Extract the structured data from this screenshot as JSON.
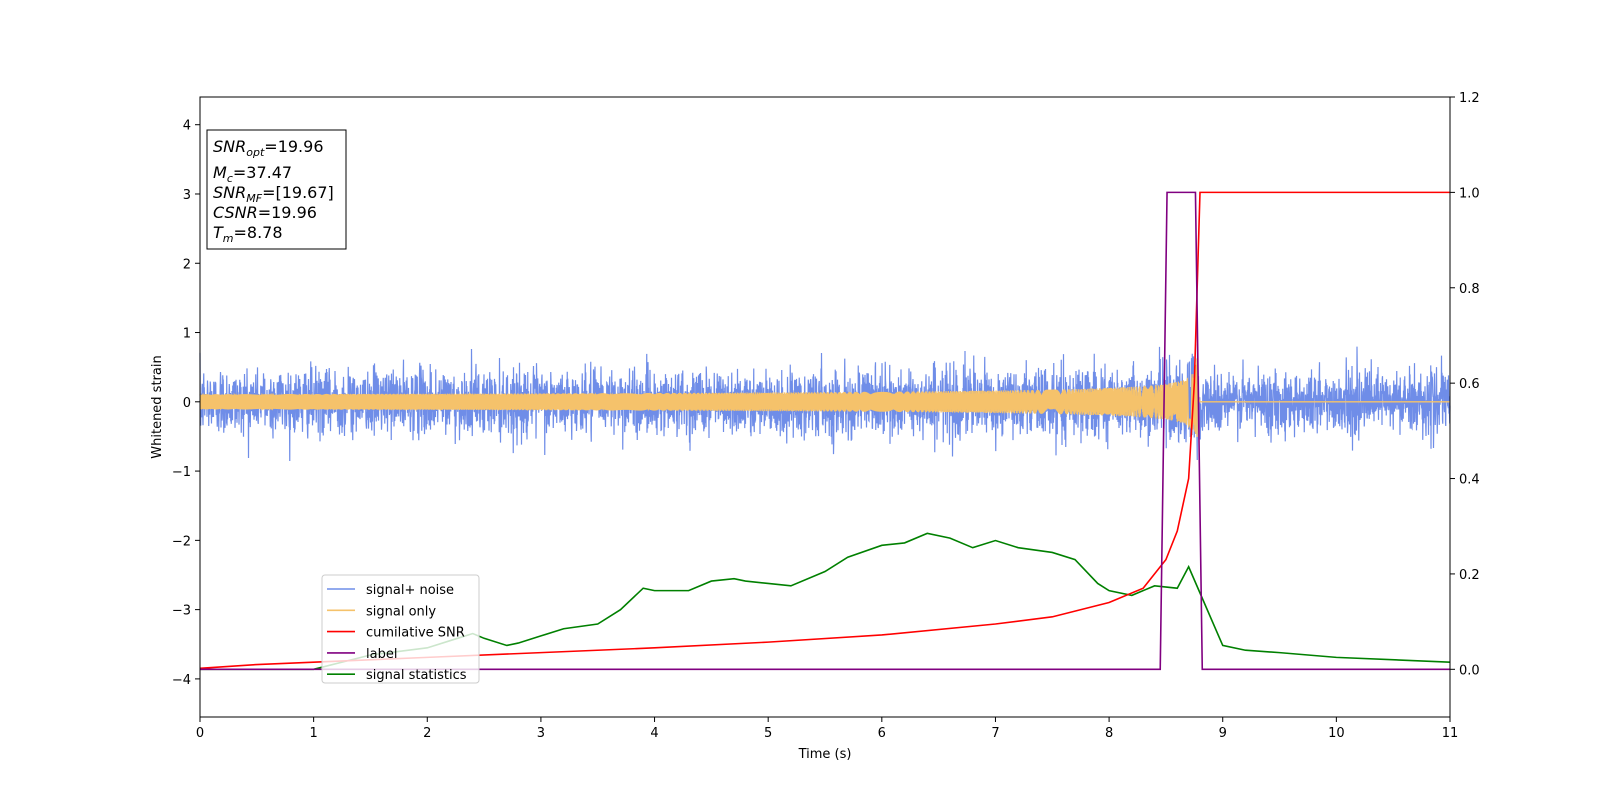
{
  "chart_data": {
    "type": "line",
    "xlabel": "Time (s)",
    "ylabel": "Whitened strain",
    "xlim": [
      0,
      11
    ],
    "ylim_left": [
      -4.55,
      4.4
    ],
    "ylim_right": [
      -0.1,
      1.2
    ],
    "x_ticks": [
      "0",
      "1",
      "2",
      "3",
      "4",
      "5",
      "6",
      "7",
      "8",
      "9",
      "10",
      "11"
    ],
    "y_left_ticks": [
      "4",
      "3",
      "2",
      "1",
      "0",
      "−1",
      "−2",
      "−3",
      "−4"
    ],
    "y_right_ticks": [
      "1.2",
      "1.0",
      "0.8",
      "0.6",
      "0.4",
      "0.2",
      "0.0"
    ],
    "x_tick_values": [
      0,
      1,
      2,
      3,
      4,
      5,
      6,
      7,
      8,
      9,
      10,
      11
    ],
    "y_left_tick_values": [
      4,
      3,
      2,
      1,
      0,
      -1,
      -2,
      -3,
      -4
    ],
    "y_right_tick_values": [
      1.2,
      1.0,
      0.8,
      0.6,
      0.4,
      0.2,
      0.0
    ],
    "series": [
      {
        "name": "signal+ noise",
        "axis": "left",
        "color": "#6f8de8",
        "description_values": "noise band amplitude ~ +/-0.5, peaks to ~0.85; merger peak ~1.0 at t=8.78",
        "noise_std": 0.22
      },
      {
        "name": "signal only",
        "axis": "left",
        "color": "#f5c26b",
        "chirp_merger_time": 8.78,
        "chirp_peak_amplitude": 0.75
      },
      {
        "name": "cumilative SNR",
        "axis": "right",
        "color": "#ff0000",
        "x": [
          0,
          0.5,
          1,
          2,
          3,
          4,
          5,
          6,
          7,
          7.5,
          8,
          8.3,
          8.5,
          8.6,
          8.7,
          8.75,
          8.8,
          9,
          10,
          11
        ],
        "y": [
          0.002,
          0.01,
          0.015,
          0.025,
          0.035,
          0.045,
          0.057,
          0.072,
          0.095,
          0.11,
          0.14,
          0.17,
          0.23,
          0.29,
          0.4,
          0.6,
          1.0,
          1.0,
          1.0,
          1.0
        ]
      },
      {
        "name": "label",
        "axis": "right",
        "color": "#800080",
        "x": [
          0,
          8.45,
          8.51,
          8.76,
          8.82,
          11
        ],
        "y": [
          0,
          0,
          1,
          1,
          0,
          0
        ]
      },
      {
        "name": "signal statistics",
        "axis": "right",
        "color": "#008000",
        "x": [
          0,
          1,
          1.5,
          2,
          2.2,
          2.4,
          2.5,
          2.7,
          2.8,
          3,
          3.2,
          3.5,
          3.7,
          3.9,
          4,
          4.3,
          4.5,
          4.7,
          4.8,
          5,
          5.2,
          5.5,
          5.7,
          6,
          6.2,
          6.4,
          6.6,
          6.8,
          7,
          7.2,
          7.5,
          7.7,
          7.9,
          8.0,
          8.2,
          8.4,
          8.6,
          8.7,
          8.8,
          9.0,
          9.2,
          9.5,
          10,
          11
        ],
        "y": [
          0.0,
          0.0,
          0.03,
          0.045,
          0.06,
          0.075,
          0.065,
          0.05,
          0.055,
          0.07,
          0.085,
          0.095,
          0.125,
          0.17,
          0.165,
          0.165,
          0.185,
          0.19,
          0.185,
          0.18,
          0.175,
          0.205,
          0.235,
          0.26,
          0.265,
          0.285,
          0.275,
          0.255,
          0.27,
          0.255,
          0.245,
          0.23,
          0.18,
          0.165,
          0.155,
          0.175,
          0.17,
          0.215,
          0.16,
          0.05,
          0.04,
          0.035,
          0.025,
          0.015
        ]
      }
    ],
    "legend_position": "lower left",
    "legend": [
      {
        "label": "signal+ noise",
        "color": "#6f8de8"
      },
      {
        "label": "signal only",
        "color": "#f5c26b"
      },
      {
        "label": "cumilative SNR",
        "color": "#ff0000"
      },
      {
        "label": "label",
        "color": "#800080"
      },
      {
        "label": "signal statistics",
        "color": "#008000"
      }
    ],
    "annotation": {
      "snr_opt_var": "SNR",
      "snr_opt_sub": "opt",
      "snr_opt_value": "=19.96",
      "mc_var": "M",
      "mc_sub": "c",
      "mc_value": "=37.47",
      "snr_mf_var": "SNR",
      "snr_mf_sub": "MF",
      "snr_mf_value": "=[19.67]",
      "csnr_var": "CSNR",
      "csnr_value": "=19.96",
      "tm_var": "T",
      "tm_sub": "m",
      "tm_value": "=8.78"
    }
  }
}
